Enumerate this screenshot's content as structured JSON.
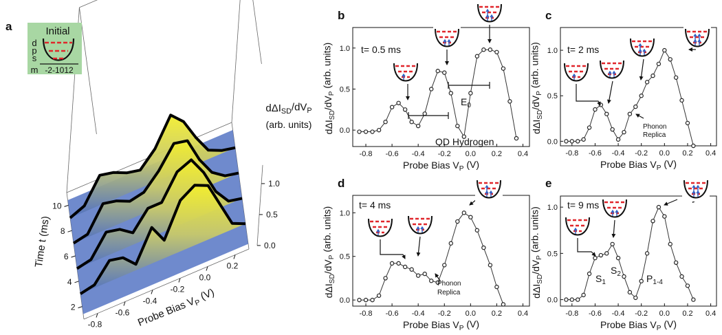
{
  "chart_data": [
    {
      "type": "surface3d",
      "panel_label": "a",
      "x": [
        -0.9,
        -0.8,
        -0.7,
        -0.6,
        -0.5,
        -0.4,
        -0.3,
        -0.2,
        -0.1,
        0.0,
        0.1,
        0.2,
        0.3
      ],
      "traces": [
        {
          "t": 9,
          "values": [
            0,
            0.1,
            0.5,
            0.45,
            0.35,
            0.3,
            0.55,
            1.0,
            0.8,
            0.45,
            0.15,
            0.05,
            0
          ]
        },
        {
          "t": 7,
          "values": [
            0,
            0.05,
            0.45,
            0.4,
            0.3,
            0.35,
            0.6,
            0.95,
            0.9,
            0.5,
            0.2,
            0.05,
            0
          ]
        },
        {
          "t": 5,
          "values": [
            0,
            0.05,
            0.4,
            0.35,
            0.2,
            0.5,
            0.5,
            0.9,
            1.0,
            0.7,
            0.3,
            0.05,
            0
          ]
        },
        {
          "t": 3,
          "values": [
            0,
            0.05,
            0.35,
            0.3,
            0.1,
            0.6,
            0.3,
            0.85,
            1.0,
            0.9,
            0.5,
            0.1,
            0
          ]
        }
      ],
      "xlim": [
        -0.9,
        0.3
      ],
      "tlim": [
        1,
        11
      ],
      "zlim": [
        0,
        1.3
      ],
      "xticks": [
        -0.8,
        -0.6,
        -0.4,
        -0.2,
        {
          "value": 0,
          "label": "0.0"
        },
        0.2
      ],
      "tticks": [
        2,
        4,
        6,
        8,
        10
      ],
      "zticks": [
        {
          "value": 0,
          "label": "0.0"
        },
        {
          "value": 0.5,
          "label": "0.5"
        },
        {
          "value": 1,
          "label": "1.0"
        }
      ],
      "xlabel": [
        "Probe Bias V",
        "P",
        " (V)"
      ],
      "tlabel": [
        "Time t (ms)"
      ],
      "zlabel": [
        "dΔI",
        "SD",
        "/dV",
        "P"
      ],
      "zlabel2": [
        "(arb. units)"
      ],
      "inset": {
        "title": "Initial",
        "levels": [
          "d",
          "p",
          "s"
        ],
        "m_label": "m",
        "m_values": "-2-1012"
      }
    },
    {
      "type": "scatter",
      "panel_label": "b",
      "x": [
        -0.85,
        -0.8,
        -0.75,
        -0.7,
        -0.65,
        -0.6,
        -0.55,
        -0.5,
        -0.45,
        -0.4,
        -0.35,
        -0.3,
        -0.25,
        -0.2,
        -0.15,
        -0.1,
        -0.05,
        0.0,
        0.05,
        0.1,
        0.15,
        0.2,
        0.25,
        0.3,
        0.35
      ],
      "values": [
        -0.02,
        -0.02,
        -0.02,
        0.0,
        0.1,
        0.28,
        0.33,
        0.25,
        0.1,
        0.05,
        0.2,
        0.5,
        0.72,
        0.7,
        0.45,
        0.05,
        -0.08,
        0.45,
        0.9,
        0.98,
        0.98,
        0.95,
        0.75,
        0.35,
        -0.1
      ],
      "xlim": [
        -0.9,
        0.45
      ],
      "ylim": [
        -0.2,
        1.25
      ],
      "xticks": [
        -0.8,
        -0.6,
        -0.4,
        -0.2,
        {
          "value": 0,
          "label": "0.0"
        },
        0.2,
        0.4
      ],
      "yticks": [
        {
          "value": 0,
          "label": "0.0"
        },
        {
          "value": 0.5,
          "label": "0.5"
        },
        {
          "value": 1,
          "label": "1.0"
        }
      ],
      "xlabel": [
        "Probe Bias V",
        "P",
        " (V)"
      ],
      "ylabel": [
        "dΔI",
        "SD",
        "/dV",
        "P",
        " (arb. units)"
      ],
      "annotations": [
        [
          "t= 0.5 ms"
        ],
        [
          "QD Hydrogen"
        ],
        [
          "E",
          "0"
        ]
      ]
    },
    {
      "type": "scatter",
      "panel_label": "c",
      "x": [
        -0.85,
        -0.8,
        -0.75,
        -0.7,
        -0.65,
        -0.6,
        -0.55,
        -0.5,
        -0.45,
        -0.4,
        -0.35,
        -0.3,
        -0.25,
        -0.2,
        -0.15,
        -0.1,
        -0.05,
        0.0,
        0.05,
        0.1,
        0.15,
        0.2,
        0.25
      ],
      "values": [
        0,
        0,
        0,
        0.02,
        0.15,
        0.35,
        0.4,
        0.3,
        0.13,
        0.02,
        0.1,
        0.3,
        0.38,
        0.5,
        0.65,
        0.72,
        0.85,
        1.0,
        0.9,
        0.7,
        0.45,
        0.2,
        -0.05
      ],
      "xlim": [
        -0.9,
        0.45
      ],
      "ylim": [
        -0.05,
        1.25
      ],
      "xticks": [
        -0.8,
        -0.6,
        -0.4,
        -0.2,
        {
          "value": 0,
          "label": "0.0"
        },
        0.2,
        0.4
      ],
      "yticks": [
        {
          "value": 0,
          "label": "0.0"
        },
        {
          "value": 0.5,
          "label": "0.5"
        },
        {
          "value": 1,
          "label": "1.0"
        }
      ],
      "xlabel": [
        "Probe Bias V",
        "P",
        " (V)"
      ],
      "ylabel": [
        "dΔI",
        "SD",
        "/dV",
        "P",
        " (arb. units)"
      ],
      "annotations": [
        [
          "t= 2 ms"
        ],
        [
          "Phonon"
        ],
        [
          "Replica"
        ]
      ]
    },
    {
      "type": "scatter",
      "panel_label": "d",
      "x": [
        -0.85,
        -0.8,
        -0.75,
        -0.7,
        -0.65,
        -0.6,
        -0.55,
        -0.5,
        -0.45,
        -0.4,
        -0.35,
        -0.3,
        -0.25,
        -0.2,
        -0.15,
        -0.1,
        -0.05,
        0.0,
        0.05,
        0.1,
        0.15,
        0.2,
        0.25
      ],
      "values": [
        0,
        0,
        0,
        0.05,
        0.25,
        0.42,
        0.42,
        0.38,
        0.35,
        0.28,
        0.3,
        0.22,
        0.2,
        0.4,
        0.65,
        0.9,
        1.0,
        0.95,
        0.8,
        0.6,
        0.4,
        0.15,
        -0.05
      ],
      "xlim": [
        -0.9,
        0.45
      ],
      "ylim": [
        -0.07,
        1.2
      ],
      "xticks": [
        -0.8,
        -0.6,
        -0.4,
        -0.2,
        {
          "value": 0,
          "label": "0.0"
        },
        0.2,
        0.4
      ],
      "yticks": [
        {
          "value": 0,
          "label": "0.0"
        },
        {
          "value": 0.5,
          "label": "0.5"
        },
        {
          "value": 1,
          "label": "1.0"
        }
      ],
      "xlabel": [
        "Probe Bias V",
        "P",
        " (V)"
      ],
      "ylabel": [
        "dΔI",
        "SD",
        "/dV",
        "P",
        " (arb. units)"
      ],
      "annotations": [
        [
          "t= 4 ms"
        ],
        [
          "Phonon"
        ],
        [
          "Replica"
        ]
      ]
    },
    {
      "type": "scatter",
      "panel_label": "e",
      "x": [
        -0.85,
        -0.8,
        -0.75,
        -0.7,
        -0.65,
        -0.6,
        -0.55,
        -0.5,
        -0.45,
        -0.4,
        -0.35,
        -0.3,
        -0.25,
        -0.2,
        -0.15,
        -0.1,
        -0.05,
        0.0,
        0.05,
        0.1,
        0.15,
        0.2,
        0.25
      ],
      "values": [
        0,
        0,
        0,
        0.05,
        0.28,
        0.45,
        0.48,
        0.5,
        0.6,
        0.45,
        0.25,
        0.08,
        0.02,
        0.2,
        0.5,
        0.85,
        1.0,
        0.9,
        0.6,
        0.4,
        0.25,
        0.15,
        0.0
      ],
      "xlim": [
        -0.9,
        0.45
      ],
      "ylim": [
        -0.07,
        1.12
      ],
      "xticks": [
        -0.8,
        -0.6,
        -0.4,
        -0.2,
        {
          "value": 0,
          "label": "0.0"
        },
        0.2,
        0.4
      ],
      "yticks": [
        {
          "value": 0,
          "label": "0.0"
        },
        {
          "value": 0.5,
          "label": "0.5"
        },
        {
          "value": 1,
          "label": "1.0"
        }
      ],
      "xlabel": [
        "Probe Bias V",
        "P",
        " (V)"
      ],
      "ylabel": [
        "dΔI",
        "SD",
        "/dV",
        "P",
        " (arb. units)"
      ],
      "annotations": [
        [
          "t= 9 ms"
        ],
        [
          "S",
          "1"
        ],
        [
          "S",
          "2"
        ],
        [
          "P",
          "1-4"
        ]
      ]
    }
  ]
}
